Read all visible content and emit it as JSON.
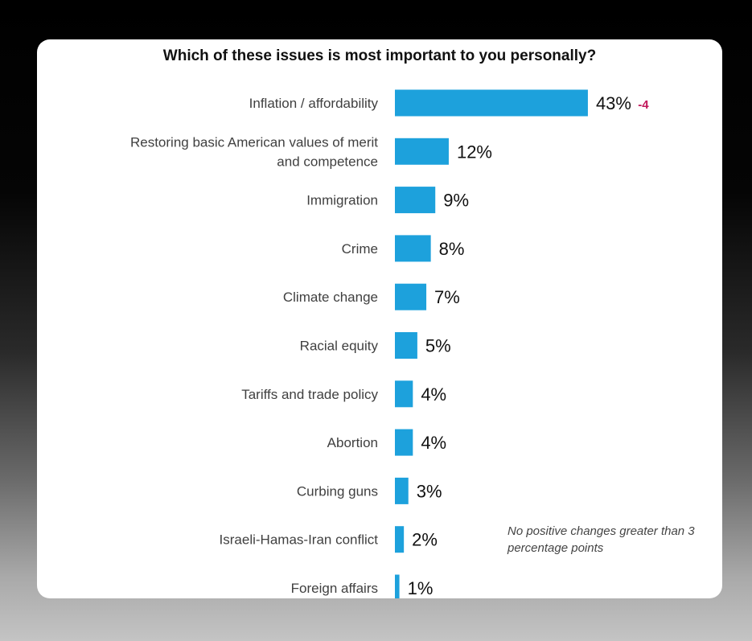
{
  "chart_data": {
    "type": "bar",
    "orientation": "horizontal",
    "title": "Which of these issues is most important to you personally?",
    "categories": [
      "Inflation / affordability",
      "Restoring basic American values of merit and competence",
      "Immigration",
      "Crime",
      "Climate change",
      "Racial equity",
      "Tariffs and trade policy",
      "Abortion",
      "Curbing guns",
      "Israeli-Hamas-Iran conflict",
      "Foreign affairs"
    ],
    "values": [
      43,
      12,
      9,
      8,
      7,
      5,
      4,
      4,
      3,
      2,
      1
    ],
    "data_labels": [
      "43%",
      "12%",
      "9%",
      "8%",
      "7%",
      "5%",
      "4%",
      "4%",
      "3%",
      "2%",
      "1%"
    ],
    "changes": [
      "-4",
      "",
      "",
      "",
      "",
      "",
      "",
      "",
      "",
      "",
      ""
    ],
    "note": "No positive changes greater than 3 percentage points",
    "bar_color": "#1da1dc",
    "change_color": "#c2185b",
    "grid": false,
    "legend": "none"
  }
}
